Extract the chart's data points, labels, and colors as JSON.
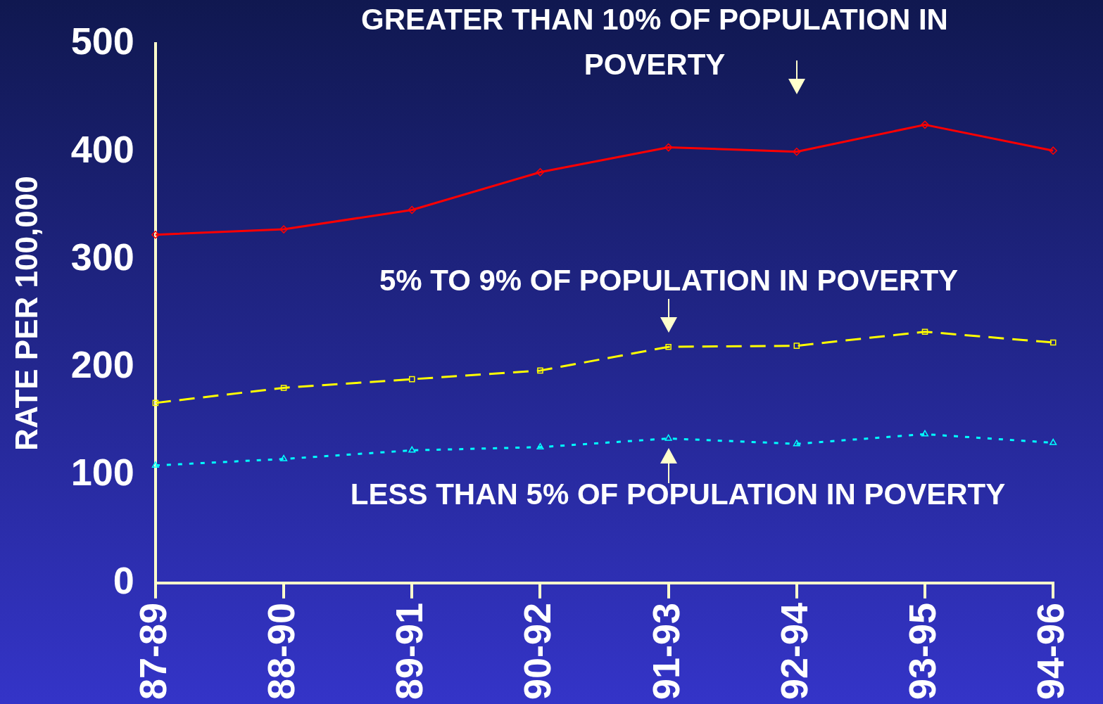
{
  "chart_data": {
    "type": "line",
    "ylabel": "RATE PER 100,000",
    "categories": [
      "87-89",
      "88-90",
      "89-91",
      "90-92",
      "91-93",
      "92-94",
      "93-95",
      "94-96"
    ],
    "ylim": [
      0,
      500
    ],
    "yticks": [
      0,
      100,
      200,
      300,
      400,
      500
    ],
    "grid": false,
    "legend": false,
    "series": [
      {
        "name": "GREATER THAN 10% OF POPULATION IN POVERTY",
        "color": "#ff0000",
        "marker": "diamond",
        "line_style": "solid",
        "values": [
          323,
          328,
          346,
          381,
          404,
          400,
          425,
          401
        ]
      },
      {
        "name": "5% TO 9% OF POPULATION IN POVERTY",
        "color": "#ffff00",
        "marker": "square",
        "line_style": "dashed",
        "values": [
          167,
          181,
          189,
          197,
          219,
          220,
          233,
          223
        ]
      },
      {
        "name": "LESS THAN 5% OF POPULATION IN POVERTY",
        "color": "#00ffff",
        "marker": "triangle",
        "line_style": "dotted",
        "values": [
          109,
          115,
          123,
          126,
          134,
          129,
          138,
          130
        ]
      }
    ]
  }
}
